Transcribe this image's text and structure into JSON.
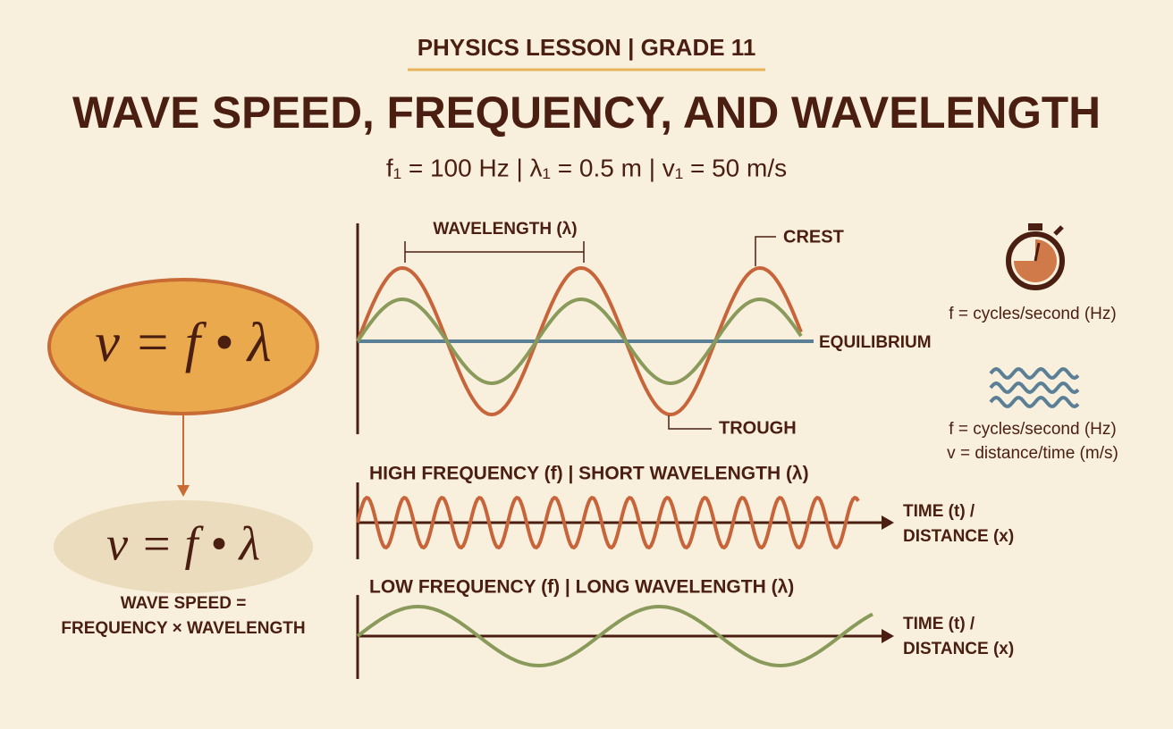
{
  "header": {
    "kicker": "PHYSICS LESSON | GRADE 11",
    "title": "WAVE SPEED, FREQUENCY, AND WAVELENGTH",
    "subtitle": "f₁ = 100 Hz | λ₁ = 0.5 m | v₁ = 50 m/s"
  },
  "formula": {
    "main": "v = f • λ",
    "secondary": "v = f • λ",
    "caption": [
      "WAVE SPEED =",
      "FREQUENCY × WAVELENGTH"
    ]
  },
  "wave_diagram": {
    "wavelength": "WAVELENGTH (λ)",
    "crest": "CREST",
    "equilibrium": "EQUILIBRIUM",
    "trough": "TROUGH"
  },
  "legend": {
    "frequency": "f = cycles/second (Hz)",
    "wave_lines": [
      "f = cycles/second (Hz)",
      "v = distance/time (m/s)"
    ]
  },
  "panels": [
    {
      "title": "HIGH FREQUENCY (f) | SHORT WAVELENGTH (λ)",
      "axis": [
        "TIME (t) /",
        "DISTANCE (x)"
      ]
    },
    {
      "title": "LOW FREQUENCY (f) | LONG WAVELENGTH (λ)",
      "axis": [
        "TIME (t) /",
        "DISTANCE (x)"
      ]
    }
  ]
}
